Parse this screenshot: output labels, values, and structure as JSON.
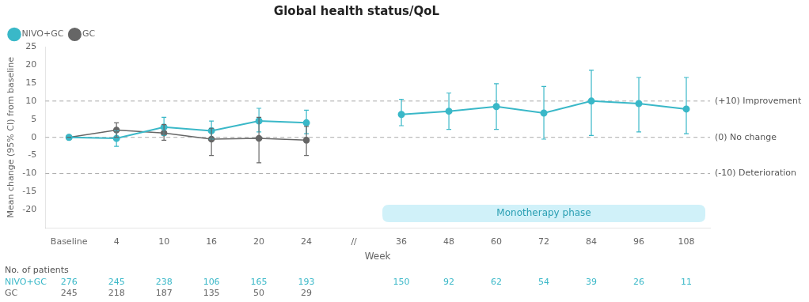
{
  "chart_data": {
    "type": "line",
    "title": "Global health status/QoL",
    "x_label": "Week",
    "y_label": "Mean change (95% CI) from baseline",
    "categories": [
      "Baseline",
      "4",
      "10",
      "16",
      "20",
      "24",
      "//",
      "36",
      "48",
      "60",
      "72",
      "84",
      "96",
      "108"
    ],
    "series": [
      {
        "name": "NIVO+GC",
        "color": "#3ab8c8",
        "marker": "circle",
        "line_style": "solid",
        "values": [
          0.0,
          -0.3,
          2.8,
          1.8,
          4.5,
          4.0,
          null,
          6.3,
          7.2,
          8.5,
          6.7,
          10.0,
          9.3,
          7.8
        ],
        "ci_low": [
          0.0,
          -2.5,
          0.5,
          -0.5,
          1.5,
          1.0,
          null,
          3.2,
          2.2,
          2.2,
          -0.5,
          0.5,
          1.5,
          1.0
        ],
        "ci_high": [
          0.0,
          1.8,
          5.5,
          4.5,
          8.0,
          7.5,
          null,
          10.5,
          12.2,
          14.8,
          14.0,
          18.5,
          16.5,
          16.5
        ],
        "patients": [
          276,
          245,
          238,
          106,
          165,
          193,
          null,
          150,
          92,
          62,
          54,
          39,
          26,
          11
        ]
      },
      {
        "name": "GC",
        "color": "#666666",
        "marker": "circle",
        "line_style": "solid",
        "values": [
          0.0,
          2.0,
          1.2,
          -0.5,
          -0.3,
          -0.8,
          null,
          null,
          null,
          null,
          null,
          null,
          null,
          null
        ],
        "ci_low": [
          0.0,
          0.0,
          -0.8,
          -5.0,
          -7.0,
          -5.0,
          null,
          null,
          null,
          null,
          null,
          null,
          null,
          null
        ],
        "ci_high": [
          0.0,
          4.0,
          3.5,
          2.5,
          5.5,
          3.0,
          null,
          null,
          null,
          null,
          null,
          null,
          null,
          null
        ],
        "patients": [
          245,
          218,
          187,
          135,
          50,
          29,
          null,
          null,
          null,
          null,
          null,
          null,
          null,
          null
        ]
      }
    ],
    "ylim": [
      -25,
      25
    ],
    "yticks": [
      -20,
      -15,
      -10,
      -5,
      0,
      5,
      10,
      15,
      20,
      25
    ],
    "grid": false,
    "legend": "upper left",
    "reference_lines": [
      {
        "value": 10,
        "label": "(+10) Improvement",
        "line_style": "dashed"
      },
      {
        "value": 0,
        "label": "(0) No change",
        "line_style": "dashed"
      },
      {
        "value": -10,
        "label": "(-10) Deterioration",
        "line_style": "dashed"
      }
    ],
    "annotations": [
      {
        "text": "Monotherapy phase",
        "from": "36",
        "to": "108",
        "y": -21,
        "color": "#c8eef8"
      }
    ],
    "patients_title": "No. of patients"
  }
}
